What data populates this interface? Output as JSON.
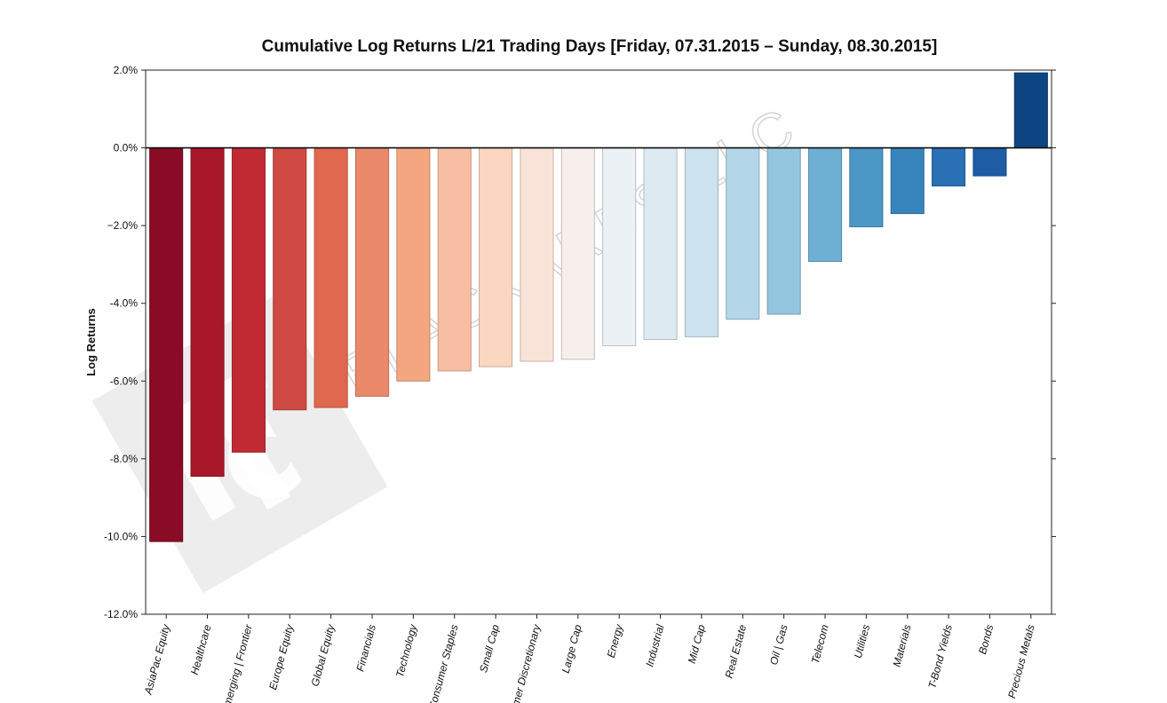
{
  "chart_data": {
    "type": "bar",
    "title": "Cumulative Log Returns L/21 Trading Days  [Friday, 07.31.2015 – Sunday, 08.30.2015]",
    "xlabel": "",
    "ylabel": "Log Returns",
    "ylim": [
      -12.0,
      2.0
    ],
    "yticks": [
      "2.0%",
      "0.0%",
      "−2.0%",
      "-4.0%",
      "-6.0%",
      "-8.0%",
      "-10.0%",
      "-12.0%"
    ],
    "categories": [
      "AsiaPac Equity",
      "Healthcare",
      "Emerging | Frontier",
      "Europe Equity",
      "Global Equity",
      "Financials",
      "Technology",
      "Consumer Staples",
      "Small Cap",
      "Consumer Discretionary",
      "Large Cap",
      "Energy",
      "Industrial",
      "Mid Cap",
      "Real Estate",
      "Oil | Gas",
      "Telecom",
      "Utilities",
      "Materials",
      "T-Bond Yields",
      "Bonds",
      "Precious Metals"
    ],
    "values": [
      -10.13,
      -8.45,
      -7.83,
      -6.74,
      -6.68,
      -6.39,
      -6.0,
      -5.74,
      -5.63,
      -5.49,
      -5.44,
      -5.09,
      -4.93,
      -4.86,
      -4.41,
      -4.28,
      -2.92,
      -2.03,
      -1.69,
      -0.98,
      -0.72,
      1.93
    ],
    "colors": [
      "#8a0b25",
      "#a8172a",
      "#c12a33",
      "#cf4a42",
      "#e0684f",
      "#ea8a6a",
      "#f4a680",
      "#f8bea3",
      "#fbd6c1",
      "#f9e3d8",
      "#f6efec",
      "#ecf1f5",
      "#deeaf2",
      "#cde2ef",
      "#b3d6e8",
      "#94c6df",
      "#6eafd4",
      "#4b98c7",
      "#3784bd",
      "#2970b4",
      "#1f5ca6",
      "#0d4583"
    ],
    "edge_colors": [
      "#6e0a1e",
      "#861223",
      "#9c2229",
      "#a63a35",
      "#b35340",
      "#bb6e55",
      "#c38566",
      "#c69882",
      "#c8ab9a",
      "#c7b5ac",
      "#c4bfbc",
      "#bcc1c4",
      "#b1bbc2",
      "#a4b5bf",
      "#8fabba",
      "#769eb2",
      "#588ca9",
      "#3c7a9f",
      "#2c6a97",
      "#215a90",
      "#194a85",
      "#0a3769"
    ],
    "grid": false,
    "legend": "none"
  },
  "watermark": {
    "text": "BLACKARBS LLC"
  }
}
